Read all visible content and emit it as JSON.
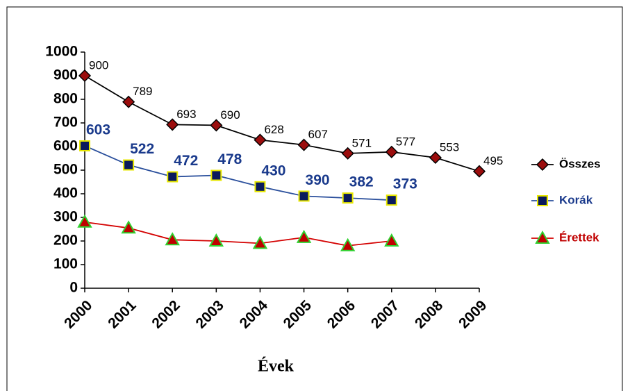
{
  "chart_data": {
    "type": "line",
    "categories": [
      "2000",
      "2001",
      "2002",
      "2003",
      "2004",
      "2005",
      "2006",
      "2007",
      "2008",
      "2009"
    ],
    "x_label": "Évek",
    "ylim": [
      0,
      1000
    ],
    "yticks": [
      0,
      100,
      200,
      300,
      400,
      500,
      600,
      700,
      800,
      900,
      1000
    ],
    "series": [
      {
        "name": "Összes",
        "color": "#000000",
        "marker": "diamond",
        "marker_fill": "#9b0d0d",
        "marker_edge": "#000000",
        "data_labels": true,
        "label_color": "#000000",
        "values": [
          900,
          789,
          693,
          690,
          628,
          607,
          571,
          577,
          553,
          495
        ]
      },
      {
        "name": "Korák",
        "color": "#2a4f9c",
        "marker": "square",
        "marker_fill": "#0a1a5c",
        "marker_edge": "#e8e800",
        "data_labels": true,
        "label_color": "#1a3a8c",
        "values": [
          603,
          522,
          472,
          478,
          430,
          390,
          382,
          373,
          null,
          null
        ]
      },
      {
        "name": "Érettek",
        "color": "#d40000",
        "marker": "triangle",
        "marker_fill": "#c00000",
        "marker_edge": "#2fd12f",
        "data_labels": false,
        "label_color": "#c00000",
        "values": [
          280,
          255,
          205,
          200,
          190,
          215,
          180,
          200,
          null,
          null
        ]
      }
    ]
  }
}
